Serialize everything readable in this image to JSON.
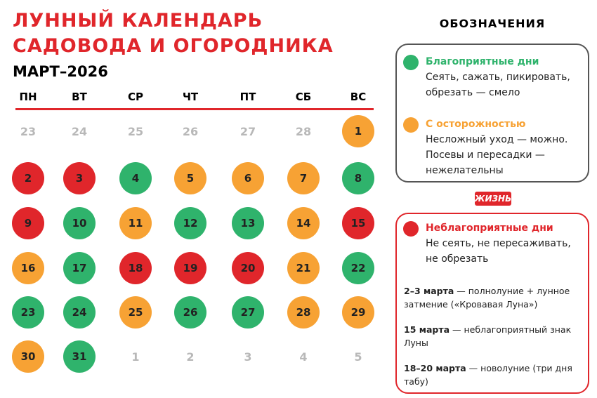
{
  "header": {
    "title_lines": [
      "ЛУННЫЙ КАЛЕНДАРЬ",
      "САДОВОДА И ОГОРОДНИКА"
    ],
    "month": "МАРТ–2026"
  },
  "calendar": {
    "weekdays": [
      "ПН",
      "ВТ",
      "СР",
      "ЧТ",
      "ПТ",
      "СБ",
      "ВС"
    ],
    "weeks": [
      [
        {
          "day": 23,
          "color": null
        },
        {
          "day": 24,
          "color": null
        },
        {
          "day": 25,
          "color": null
        },
        {
          "day": 26,
          "color": null
        },
        {
          "day": 27,
          "color": null
        },
        {
          "day": 28,
          "color": null
        },
        {
          "day": 1,
          "color": "#f7a234"
        }
      ],
      [
        {
          "day": 2,
          "color": "#e0262b"
        },
        {
          "day": 3,
          "color": "#e0262b"
        },
        {
          "day": 4,
          "color": "#2fb36c"
        },
        {
          "day": 5,
          "color": "#f7a234"
        },
        {
          "day": 6,
          "color": "#f7a234"
        },
        {
          "day": 7,
          "color": "#f7a234"
        },
        {
          "day": 8,
          "color": "#2fb36c"
        }
      ],
      [
        {
          "day": 9,
          "color": "#e0262b"
        },
        {
          "day": 10,
          "color": "#2fb36c"
        },
        {
          "day": 11,
          "color": "#f7a234"
        },
        {
          "day": 12,
          "color": "#2fb36c"
        },
        {
          "day": 13,
          "color": "#2fb36c"
        },
        {
          "day": 14,
          "color": "#f7a234"
        },
        {
          "day": 15,
          "color": "#e0262b"
        }
      ],
      [
        {
          "day": 16,
          "color": "#f7a234"
        },
        {
          "day": 17,
          "color": "#2fb36c"
        },
        {
          "day": 18,
          "color": "#e0262b"
        },
        {
          "day": 19,
          "color": "#e0262b"
        },
        {
          "day": 20,
          "color": "#e0262b"
        },
        {
          "day": 21,
          "color": "#f7a234"
        },
        {
          "day": 22,
          "color": "#2fb36c"
        }
      ],
      [
        {
          "day": 23,
          "color": "#2fb36c"
        },
        {
          "day": 24,
          "color": "#2fb36c"
        },
        {
          "day": 25,
          "color": "#f7a234"
        },
        {
          "day": 26,
          "color": "#2fb36c"
        },
        {
          "day": 27,
          "color": "#2fb36c"
        },
        {
          "day": 28,
          "color": "#f7a234"
        },
        {
          "day": 29,
          "color": "#f7a234"
        }
      ],
      [
        {
          "day": 30,
          "color": "#f7a234"
        },
        {
          "day": 31,
          "color": "#2fb36c"
        },
        {
          "day": 1,
          "color": null
        },
        {
          "day": 2,
          "color": null
        },
        {
          "day": 3,
          "color": null
        },
        {
          "day": 4,
          "color": null
        },
        {
          "day": 5,
          "color": null
        }
      ]
    ]
  },
  "legend": {
    "title": "ОБОЗНАЧЕНИЯ",
    "badge": "ЖИЗНЬ",
    "boxes": [
      {
        "items": [
          {
            "label": "Благоприятные дни",
            "text": "Сеять, сажать, пикировать, обрезать — смело",
            "color": "#2fb36c"
          },
          {
            "label": "С осторожностью",
            "text": "Несложный уход — можно. Посевы и пересадки — нежелательны",
            "color": "#f7a234"
          }
        ]
      },
      {
        "items": [
          {
            "label": "Неблагоприятные дни",
            "text": "Не сеять, не пересаживать, не обрезать",
            "color": "#e0262b"
          }
        ],
        "notes": [
          {
            "bold": "2–3 марта",
            "text": "— полнолуние + лунное затмение («Кровавая Луна»)"
          },
          {
            "bold": "15 марта",
            "text": "— неблагоприятный знак Луны"
          },
          {
            "bold": "18–20 марта",
            "text": "— новолуние (три дня табу)"
          }
        ]
      }
    ]
  }
}
